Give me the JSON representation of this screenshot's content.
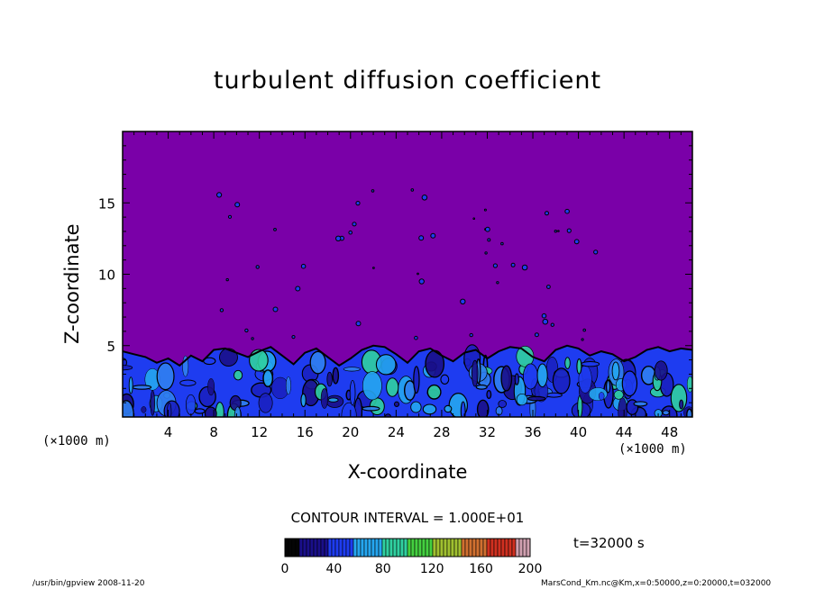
{
  "chart_data": {
    "type": "heatmap",
    "title": "turbulent diffusion coefficient",
    "xlabel": "X-coordinate",
    "ylabel": "Z-coordinate",
    "x_unit_label": "(×1000 m)",
    "xlim": [
      0,
      50
    ],
    "ylim": [
      0,
      20
    ],
    "x_ticks": [
      "4",
      "8",
      "12",
      "16",
      "20",
      "24",
      "28",
      "32",
      "36",
      "40",
      "44",
      "48"
    ],
    "y_ticks": [
      "5",
      "10",
      "15"
    ],
    "colorbar": {
      "range": [
        0,
        200
      ],
      "tick_labels": [
        "0",
        "40",
        "80",
        "120",
        "160",
        "200"
      ],
      "colors": [
        "#050505",
        "#1a0f8a",
        "#1e3cf0",
        "#25a6f0",
        "#30d0a0",
        "#44d040",
        "#a0c030",
        "#d07030",
        "#d03020",
        "#d0a0b0"
      ]
    },
    "background_color": "#7a00a8",
    "turbulent_layer_top": [
      4.6,
      4.4,
      4.2,
      3.8,
      4.1,
      3.6,
      4.3,
      3.9,
      4.7,
      4.8,
      4.5,
      4.2,
      4.6,
      4.9,
      4.3,
      3.7,
      4.5,
      4.8,
      4.2,
      3.6,
      4.1,
      4.7,
      5.0,
      4.9,
      4.4,
      3.8,
      4.6,
      4.8,
      4.3,
      3.9,
      4.5,
      4.7,
      4.1,
      4.6,
      4.9,
      4.8,
      4.2,
      3.9,
      4.7,
      5.0,
      4.8,
      4.3,
      4.6,
      4.4,
      3.9,
      4.2,
      4.7,
      4.9,
      4.6,
      4.8,
      4.7
    ]
  },
  "contour_interval": "CONTOUR INTERVAL = 1.000E+01",
  "time_label": "t=32000 s",
  "footer_left": "/usr/bin/gpview   2008-11-20",
  "footer_right": "MarsCond_Km.nc@Km,x=0:50000,z=0:20000,t=032000"
}
